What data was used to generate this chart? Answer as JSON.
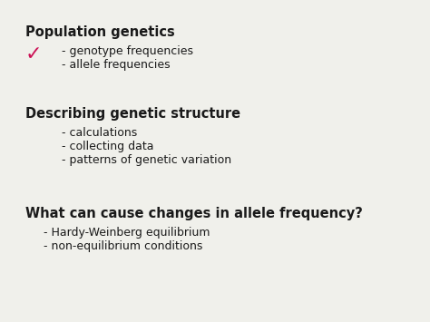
{
  "background_color": "#f0f0eb",
  "text_color": "#1a1a1a",
  "checkmark_color": "#cc1155",
  "section1_heading": "Population genetics",
  "section1_bullets": [
    "- genotype frequencies",
    "- allele frequencies"
  ],
  "section2_heading": "Describing genetic structure",
  "section2_bullets": [
    "- calculations",
    "- collecting data",
    "- patterns of genetic variation"
  ],
  "section3_heading": "What can cause changes in allele frequency?",
  "section3_bullets": [
    "- Hardy-Weinberg equilibrium",
    "- non-equilibrium conditions"
  ],
  "heading_fontsize": 10.5,
  "bullet_fontsize": 9.0,
  "checkmark_fontsize": 16
}
